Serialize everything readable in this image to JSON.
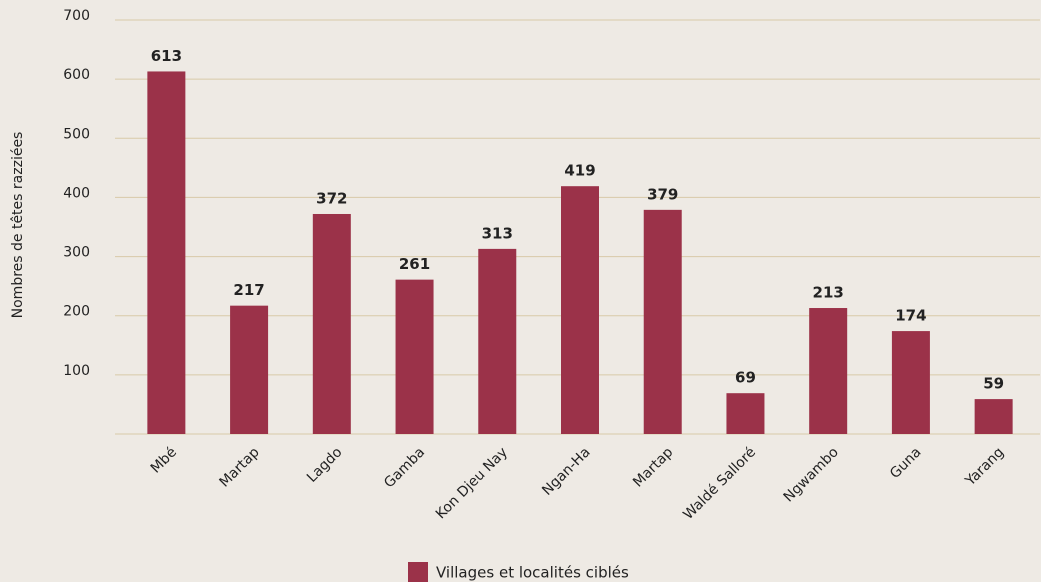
{
  "chart_data": {
    "type": "bar",
    "ylabel": "Nombres de têtes razziées",
    "categories": [
      "Mbé",
      "Martap",
      "Lagdo",
      "Gamba",
      "Kon Djeu Nay",
      "Ngan-Ha",
      "Martap",
      "Waldé Salloré",
      "Ngwambo",
      "Guna",
      "Yarang"
    ],
    "series": [
      {
        "name": "Villages et localités ciblés",
        "color": "#9b3249",
        "values": [
          613,
          217,
          372,
          261,
          313,
          419,
          379,
          69,
          213,
          174,
          59
        ]
      }
    ],
    "ylim": [
      0,
      700
    ],
    "yticks": [
      100,
      200,
      300,
      400,
      500,
      600,
      700
    ],
    "grid": true,
    "legend": "bottom"
  }
}
